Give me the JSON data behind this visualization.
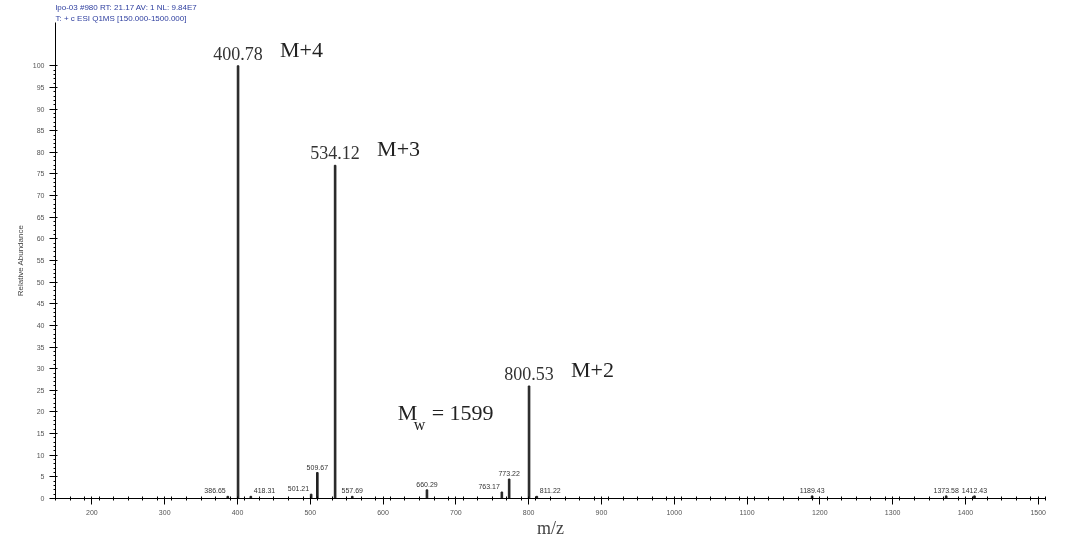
{
  "chart_data": {
    "type": "bar",
    "xlabel": "m/z",
    "ylabel": "Relative Abundance",
    "x": [
      386.65,
      400.78,
      418.31,
      501.21,
      509.67,
      534.12,
      557.69,
      660.29,
      763.17,
      773.22,
      800.53,
      811.22,
      1189.43,
      1373.58,
      1412.43
    ],
    "values": [
      0.5,
      100,
      0.5,
      1,
      6,
      77,
      0.5,
      2,
      1.5,
      4.5,
      26,
      0.5,
      0.6,
      0.6,
      0.6
    ],
    "color": "#222222",
    "xlim": [
      150,
      1510
    ],
    "ylim": [
      0,
      110
    ],
    "xticks": [
      200,
      300,
      400,
      500,
      600,
      700,
      800,
      900,
      1000,
      1100,
      1200,
      1300,
      1400,
      1500
    ],
    "yticks": [
      0,
      5,
      10,
      15,
      20,
      25,
      30,
      35,
      40,
      45,
      50,
      55,
      60,
      65,
      70,
      75,
      80,
      85,
      90,
      95,
      100
    ],
    "grid": false,
    "annotations": [
      "lpo-03 #980  RT: 21.17  AV: 1  NL: 9.84E7",
      "T: + c ESI Q1MS [150.000-1500.000]",
      {
        "text": "386.65",
        "x": 386.65,
        "y": 0.5
      },
      {
        "text": "400.78",
        "x": 400.78,
        "y": 100
      },
      {
        "text": "M+4",
        "x": 400.78,
        "y": 100
      },
      {
        "text": "418.31",
        "x": 418.31,
        "y": 0.5
      },
      {
        "text": "501.21",
        "x": 501.21,
        "y": 1
      },
      {
        "text": "509.67",
        "x": 509.67,
        "y": 6
      },
      {
        "text": "534.12",
        "x": 534.12,
        "y": 77
      },
      {
        "text": "M+3",
        "x": 534.12,
        "y": 77
      },
      {
        "text": "557.69",
        "x": 557.69,
        "y": 0.5
      },
      {
        "text": "660.29",
        "x": 660.29,
        "y": 2
      },
      {
        "text": "763.17",
        "x": 763.17,
        "y": 1.5
      },
      {
        "text": "773.22",
        "x": 773.22,
        "y": 4.5
      },
      {
        "text": "800.53",
        "x": 800.53,
        "y": 26
      },
      {
        "text": "M+2",
        "x": 800.53,
        "y": 26
      },
      {
        "text": "811.22",
        "x": 811.22,
        "y": 0.5
      },
      {
        "text": "1189.43",
        "x": 1189.43,
        "y": 0.6
      },
      {
        "text": "1373.58",
        "x": 1373.58,
        "y": 0.6
      },
      {
        "text": "1412.43",
        "x": 1412.43,
        "y": 0.6
      },
      "M$_{w}$ = 1599"
    ]
  }
}
